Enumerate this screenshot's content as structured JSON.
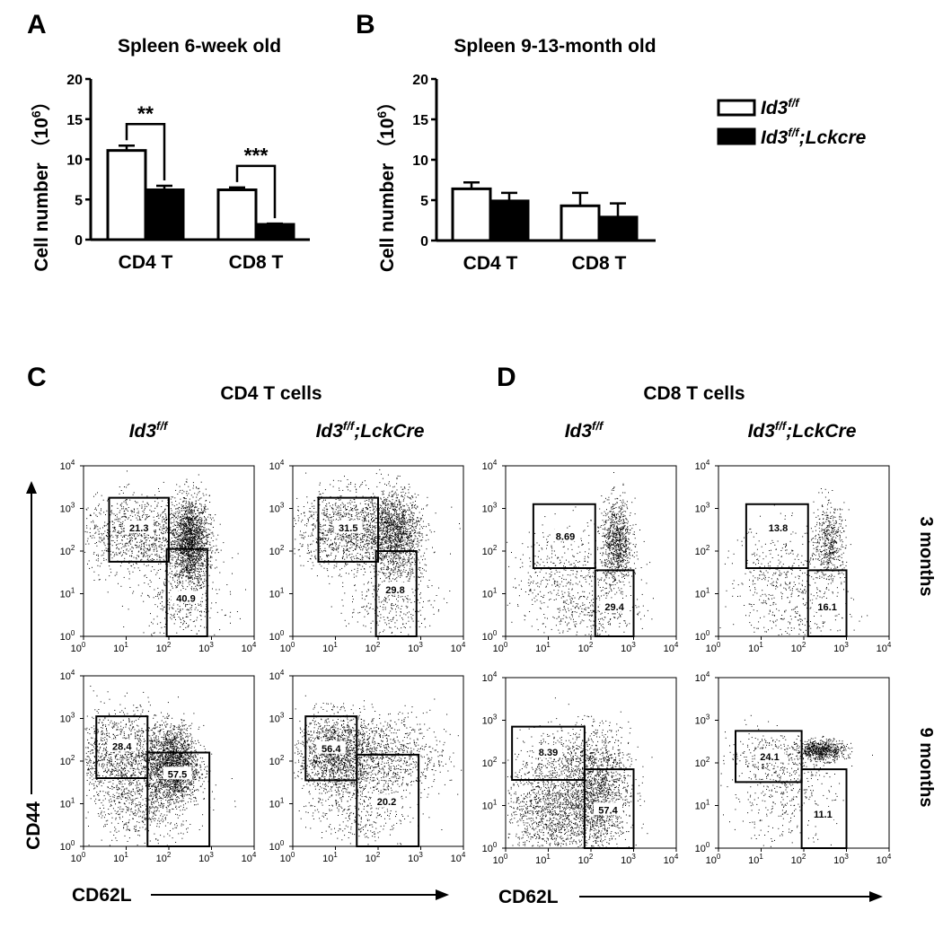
{
  "chart_data": [
    {
      "panel": "A",
      "type": "bar",
      "title": "Spleen 6-week old",
      "ylabel": "Cell number",
      "yunit_base": "10",
      "yunit_exp": "6",
      "ylim": [
        0,
        20
      ],
      "yticks": [
        "0",
        "5",
        "10",
        "15",
        "20"
      ],
      "categories": [
        "CD4 T",
        "CD8 T"
      ],
      "series": [
        {
          "name": "Id3 f/f",
          "fill": "#ffffff",
          "values": [
            11.1,
            6.2
          ],
          "errors": [
            0.6,
            0.3
          ]
        },
        {
          "name": "Id3 f/f;Lckcre",
          "fill": "#000000",
          "values": [
            6.2,
            1.9
          ],
          "errors": [
            0.5,
            0.1
          ]
        }
      ],
      "significance": [
        "**",
        "***"
      ]
    },
    {
      "panel": "B",
      "type": "bar",
      "title": "Spleen 9-13-month old",
      "ylabel": "Cell number",
      "yunit_base": "10",
      "yunit_exp": "6",
      "ylim": [
        0,
        20
      ],
      "yticks": [
        "0",
        "5",
        "10",
        "15",
        "20"
      ],
      "categories": [
        "CD4 T",
        "CD8 T"
      ],
      "series": [
        {
          "name": "Id3 f/f",
          "fill": "#ffffff",
          "values": [
            6.4,
            4.3
          ],
          "errors": [
            0.8,
            1.6
          ]
        },
        {
          "name": "Id3 f/f;Lckcre",
          "fill": "#000000",
          "values": [
            4.9,
            2.9
          ],
          "errors": [
            1.0,
            1.7
          ]
        }
      ]
    },
    {
      "panel": "C",
      "type": "scatter",
      "group_title": "CD4 T cells",
      "xlabel": "CD62L",
      "ylabel": "CD44",
      "axis_ticks": [
        "0",
        "1",
        "2",
        "3",
        "4"
      ],
      "columns": [
        {
          "genotype_base": "Id3",
          "genotype_sup": "f/f",
          "genotype_suffix": ""
        },
        {
          "genotype_base": "Id3",
          "genotype_sup": "f/f",
          "genotype_suffix": ";LckCre"
        }
      ],
      "rows": [
        "3 months",
        "9 months"
      ],
      "plots": [
        {
          "row": 0,
          "col": 0,
          "gate_values": [
            "21.3",
            "40.9"
          ]
        },
        {
          "row": 0,
          "col": 1,
          "gate_values": [
            "31.5",
            "29.8"
          ]
        },
        {
          "row": 1,
          "col": 0,
          "gate_values": [
            "28.4",
            "57.5"
          ]
        },
        {
          "row": 1,
          "col": 1,
          "gate_values": [
            "56.4",
            "20.2"
          ]
        }
      ]
    },
    {
      "panel": "D",
      "type": "scatter",
      "group_title": "CD8 T cells",
      "xlabel": "CD62L",
      "ylabel": "CD44",
      "axis_ticks": [
        "0",
        "1",
        "2",
        "3",
        "4"
      ],
      "columns": [
        {
          "genotype_base": "Id3",
          "genotype_sup": "f/f",
          "genotype_suffix": ""
        },
        {
          "genotype_base": "Id3",
          "genotype_sup": "f/f",
          "genotype_suffix": ";LckCre"
        }
      ],
      "rows": [
        "3 months",
        "9 months"
      ],
      "plots": [
        {
          "row": 0,
          "col": 0,
          "gate_values": [
            "8.69",
            "29.4"
          ]
        },
        {
          "row": 0,
          "col": 1,
          "gate_values": [
            "13.8",
            "16.1"
          ]
        },
        {
          "row": 1,
          "col": 0,
          "gate_values": [
            "8.39",
            "57.4"
          ]
        },
        {
          "row": 1,
          "col": 1,
          "gate_values": [
            "24.1",
            "11.1"
          ]
        }
      ]
    }
  ],
  "legend": [
    {
      "base": "Id3",
      "sup": "f/f",
      "suffix": "",
      "fill": "#ffffff"
    },
    {
      "base": "Id3",
      "sup": "f/f",
      "suffix": ";Lckcre",
      "fill": "#000000"
    }
  ],
  "colors": {
    "ink": "#000000",
    "paper": "#ffffff"
  }
}
